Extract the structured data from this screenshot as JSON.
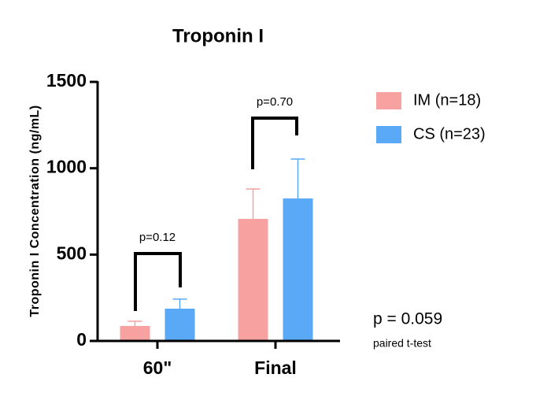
{
  "chart_data": {
    "type": "bar",
    "title": "Troponin I",
    "y_label": "Troponin I Concentration (ng/mL)",
    "categories": [
      "60\"",
      "Final"
    ],
    "series": [
      {
        "name": "IM (n=18)",
        "color": "#f7a1a1",
        "values": [
          87,
          707
        ],
        "errors": [
          27,
          173
        ]
      },
      {
        "name": "CS (n=23)",
        "color": "#5aa9f7",
        "values": [
          187,
          825
        ],
        "errors": [
          55,
          228
        ]
      }
    ],
    "ylim": [
      0,
      1500
    ],
    "yticks": [
      0,
      500,
      1000,
      1500
    ],
    "annotations": [
      "p=0.12",
      "p=0.70",
      "p = 0.059",
      "paired t-test"
    ]
  }
}
